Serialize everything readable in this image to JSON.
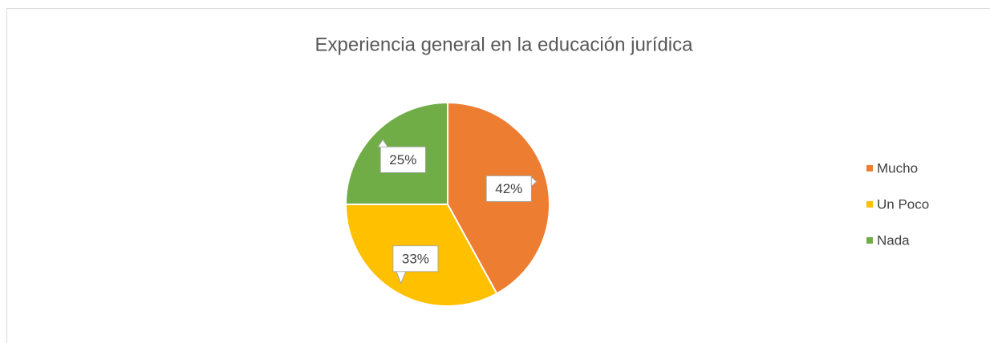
{
  "chart_data": {
    "type": "pie",
    "title": "Experiencia general en la educación jurídica",
    "categories": [
      "Mucho",
      "Un Poco",
      "Nada"
    ],
    "values": [
      42,
      33,
      25
    ],
    "value_labels": [
      "42%",
      "33%",
      "25%"
    ],
    "colors": [
      "#ed7d31",
      "#ffc000",
      "#70ad47"
    ],
    "legend": "right"
  }
}
